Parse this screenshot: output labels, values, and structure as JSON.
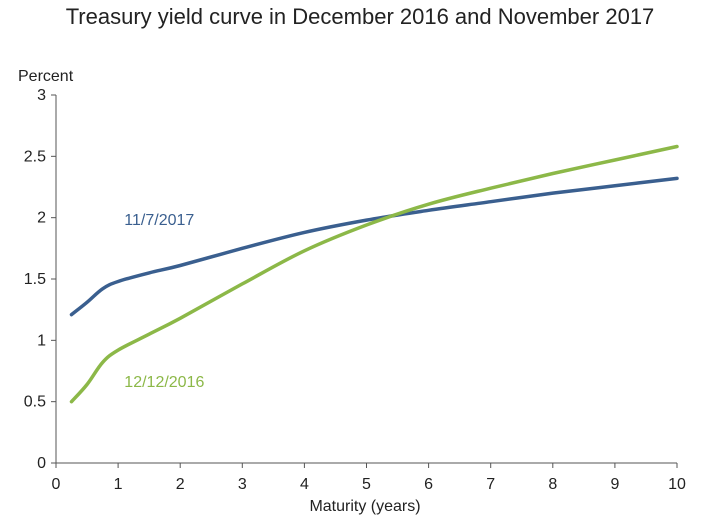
{
  "chart_data": {
    "type": "line",
    "title": "Treasury yield curve in December 2016 and November 2017",
    "xlabel": "Maturity (years)",
    "ylabel": "Percent",
    "xlim": [
      0,
      10
    ],
    "ylim": [
      0,
      3
    ],
    "xticks": [
      0,
      1,
      2,
      3,
      4,
      5,
      6,
      7,
      8,
      9,
      10
    ],
    "yticks": [
      0,
      0.5,
      1,
      1.5,
      2,
      2.5,
      3
    ],
    "ytick_labels": [
      "0",
      "0.5",
      "1",
      "1.5",
      "2",
      "2.5",
      "3"
    ],
    "grid": false,
    "legend": "inline labels",
    "series": [
      {
        "name": "11/7/2017",
        "color": "#3a5f8f",
        "label_pos": [
          1.1,
          1.98
        ],
        "x": [
          0.25,
          0.5,
          0.75,
          1,
          1.5,
          2,
          3,
          4,
          5,
          6,
          7,
          8,
          9,
          10
        ],
        "y": [
          1.21,
          1.31,
          1.42,
          1.48,
          1.55,
          1.61,
          1.75,
          1.88,
          1.98,
          2.06,
          2.13,
          2.2,
          2.26,
          2.32
        ]
      },
      {
        "name": "12/12/2016",
        "color": "#8cb848",
        "label_pos": [
          1.1,
          0.66
        ],
        "x": [
          0.25,
          0.5,
          0.75,
          1,
          1.5,
          2,
          3,
          4,
          5,
          6,
          7,
          8,
          9,
          10
        ],
        "y": [
          0.5,
          0.64,
          0.82,
          0.92,
          1.05,
          1.18,
          1.46,
          1.73,
          1.94,
          2.11,
          2.24,
          2.36,
          2.47,
          2.58
        ]
      }
    ]
  }
}
